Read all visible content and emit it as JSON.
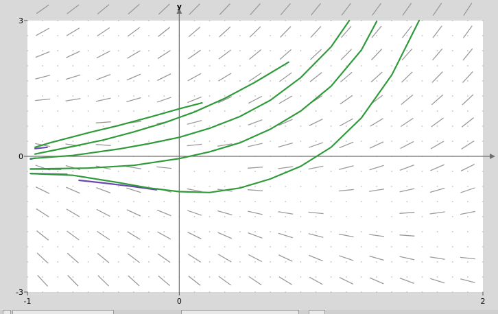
{
  "chart_data": {
    "type": "line",
    "title": "",
    "xlabel": "",
    "ylabel": "y",
    "xlim": [
      -1,
      2
    ],
    "ylim": [
      -3,
      3
    ],
    "x_tick_labels": [
      "-1",
      "0",
      "2"
    ],
    "y_tick_labels": [
      "3",
      "0",
      "-3"
    ],
    "direction_field": true,
    "grid": "dots",
    "colors": {
      "solution": "#2f9a3a",
      "backward": "#6a46b4",
      "field": "#9a9a9a"
    },
    "series": [
      {
        "x": [
          -0.95,
          -0.85,
          -0.6,
          -0.4,
          -0.2,
          0,
          0.15
        ],
        "y": [
          0.2,
          0.3,
          0.52,
          0.68,
          0.86,
          1.05,
          1.18
        ]
      },
      {
        "x": [
          -0.95,
          -0.7,
          -0.5,
          -0.3,
          -0.1,
          0.1,
          0.3,
          0.5,
          0.72
        ],
        "y": [
          0.05,
          0.22,
          0.36,
          0.54,
          0.74,
          0.98,
          1.28,
          1.64,
          2.08
        ]
      },
      {
        "x": [
          -0.98,
          -0.7,
          -0.4,
          -0.2,
          0,
          0.2,
          0.4,
          0.6,
          0.8,
          1.0,
          1.12
        ],
        "y": [
          -0.05,
          0.02,
          0.16,
          0.28,
          0.42,
          0.62,
          0.88,
          1.24,
          1.74,
          2.42,
          3.0
        ]
      },
      {
        "x": [
          -0.98,
          -0.6,
          -0.3,
          0,
          0.2,
          0.4,
          0.6,
          0.8,
          1.0,
          1.2,
          1.3
        ],
        "y": [
          -0.28,
          -0.26,
          -0.2,
          -0.05,
          0.1,
          0.3,
          0.6,
          1.0,
          1.55,
          2.35,
          2.98
        ]
      },
      {
        "x": [
          -0.98,
          -0.7,
          -0.4,
          -0.2,
          0,
          0.2,
          0.4,
          0.6,
          0.8,
          1.0,
          1.2,
          1.4,
          1.58
        ],
        "y": [
          -0.38,
          -0.42,
          -0.58,
          -0.7,
          -0.78,
          -0.8,
          -0.7,
          -0.5,
          -0.22,
          0.2,
          0.85,
          1.8,
          3.0
        ]
      }
    ],
    "backward_series": [
      {
        "x": [
          -0.95,
          -0.87
        ],
        "y": [
          0.17,
          0.2
        ]
      },
      {
        "x": [
          -0.98,
          -0.95
        ],
        "y": [
          -0.06,
          -0.04
        ]
      },
      {
        "x": [
          -0.98,
          -0.78
        ],
        "y": [
          -0.28,
          -0.28
        ]
      },
      {
        "x": [
          -0.98,
          -0.74
        ],
        "y": [
          -0.38,
          -0.4
        ]
      },
      {
        "x": [
          -0.66,
          -0.5,
          -0.3,
          -0.15
        ],
        "y": [
          -0.53,
          -0.59,
          -0.67,
          -0.74
        ]
      }
    ]
  }
}
